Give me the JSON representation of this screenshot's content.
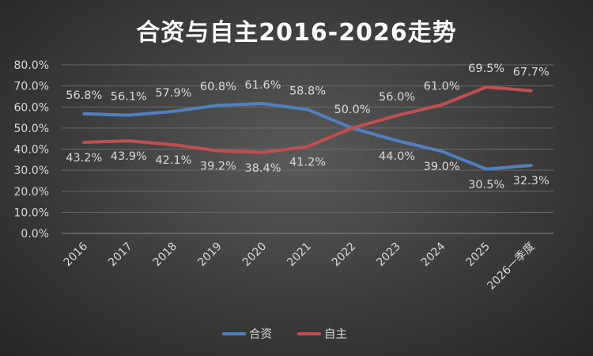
{
  "chart_data": {
    "type": "line",
    "title": "合资与自主2016-2026走势",
    "categories": [
      "2016",
      "2017",
      "2018",
      "2019",
      "2020",
      "2021",
      "2022",
      "2023",
      "2024",
      "2025",
      "2026一季度"
    ],
    "ylim": [
      0,
      80
    ],
    "yticks": [
      "0.0%",
      "10.0%",
      "20.0%",
      "30.0%",
      "40.0%",
      "50.0%",
      "60.0%",
      "70.0%",
      "80.0%"
    ],
    "grid": true,
    "legend": "bottom",
    "series": [
      {
        "name": "合资",
        "color": "#4f81bd",
        "values": [
          56.8,
          56.1,
          57.9,
          60.8,
          61.6,
          58.8,
          50.0,
          44.0,
          39.0,
          30.5,
          32.3
        ],
        "labels": [
          "56.8%",
          "56.1%",
          "57.9%",
          "60.8%",
          "61.6%",
          "58.8%",
          "50.0%",
          "44.0%",
          "39.0%",
          "30.5%",
          "32.3%"
        ]
      },
      {
        "name": "自主",
        "color": "#c0504d",
        "values": [
          43.2,
          43.9,
          42.1,
          39.2,
          38.4,
          41.2,
          50.0,
          56.0,
          61.0,
          69.5,
          67.7
        ],
        "labels": [
          "43.2%",
          "43.9%",
          "42.1%",
          "39.2%",
          "38.4%",
          "41.2%",
          "50.0%",
          "56.0%",
          "61.0%",
          "69.5%",
          "67.7%"
        ]
      }
    ]
  }
}
